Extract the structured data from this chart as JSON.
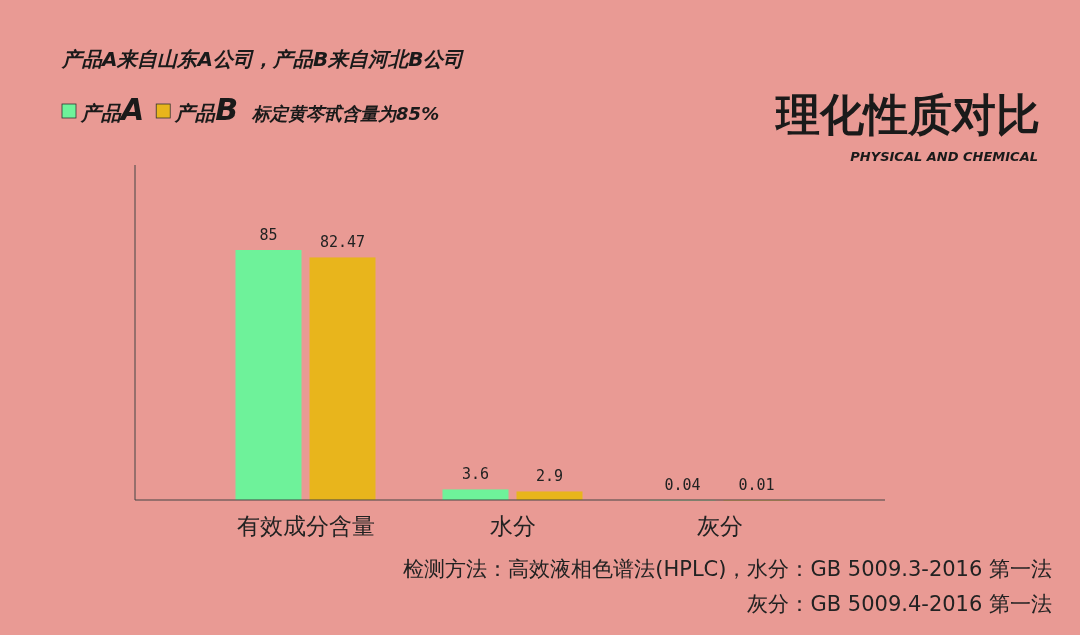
{
  "chart_data": {
    "type": "bar",
    "title": "理化性质对比",
    "subtitle": "PHYSICAL AND CHEMICAL",
    "categories": [
      "有效成分含量",
      "水分",
      "灰分"
    ],
    "series": [
      {
        "name": "产品A",
        "color": "#6ef29a",
        "values": [
          85,
          3.6,
          0.04
        ]
      },
      {
        "name": "产品B",
        "color": "#e8b51c",
        "values": [
          82.47,
          2.9,
          0.01
        ]
      }
    ],
    "data_labels": true,
    "legend": "top left",
    "annotations": [
      "产品A来自山东A公司，产品B来自河北B公司",
      "标定黄芩甙含量为85%",
      "检测方法：高效液相色谱法(HPLC)，水分：GB 5009.3-2016 第一法",
      "灰分：GB 5009.4-2016 第一法"
    ]
  }
}
